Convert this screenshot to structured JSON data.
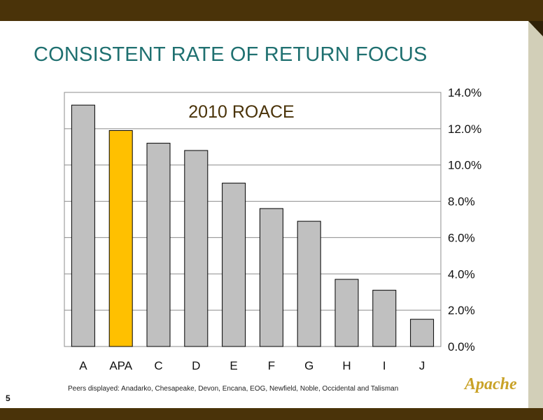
{
  "slide": {
    "title": "CONSISTENT RATE OF RETURN FOCUS",
    "page_number": "5",
    "footnote": "Peers displayed: Anadarko, Chesapeake, Devon, Encana, EOG, Newfield, Noble, Occidental and Talisman",
    "logo_text": "Apache"
  },
  "colors": {
    "title": "#1f7070",
    "bar_default": "#c0c0c0",
    "bar_highlight": "#ffc000",
    "frame": "#4a3309",
    "chart_title": "#4a3309"
  },
  "chart_data": {
    "type": "bar",
    "title": "2010 ROACE",
    "categories": [
      "A",
      "APA",
      "C",
      "D",
      "E",
      "F",
      "G",
      "H",
      "I",
      "J"
    ],
    "values": [
      13.3,
      11.9,
      11.2,
      10.8,
      9.0,
      7.6,
      6.9,
      3.7,
      3.1,
      1.5
    ],
    "highlight": "APA",
    "ylim": [
      0,
      14
    ],
    "yticks": [
      "0.0%",
      "2.0%",
      "4.0%",
      "6.0%",
      "8.0%",
      "10.0%",
      "12.0%",
      "14.0%"
    ],
    "y_axis_side": "right",
    "grid": true,
    "xlabel": "",
    "ylabel": ""
  }
}
